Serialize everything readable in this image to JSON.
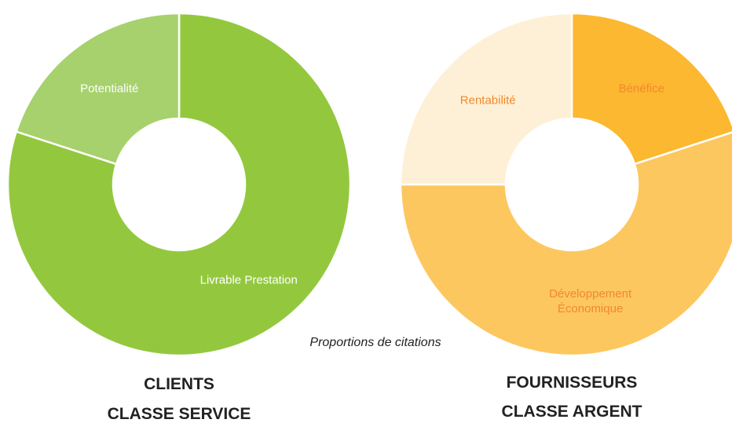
{
  "chart_data": [
    {
      "type": "donut",
      "title": "CLIENTS",
      "subtitle": "CLASSE SERVICE",
      "categories": [
        "Livrable Prestation",
        "Potentialité"
      ],
      "values": [
        80,
        20
      ],
      "colors": [
        "#93c83e",
        "#a6d16c"
      ],
      "label_color": "#ffffff"
    },
    {
      "type": "donut",
      "title": "FOURNISSEURS",
      "subtitle": "CLASSE ARGENT",
      "categories": [
        "Bénéfice",
        "Développement Économique",
        "Rentabilité"
      ],
      "values": [
        20,
        55,
        25
      ],
      "colors": [
        "#fcb830",
        "#fdc75f",
        "#fef0d6"
      ],
      "label_color": "#f0892c"
    }
  ],
  "caption": "Proportions de citations"
}
